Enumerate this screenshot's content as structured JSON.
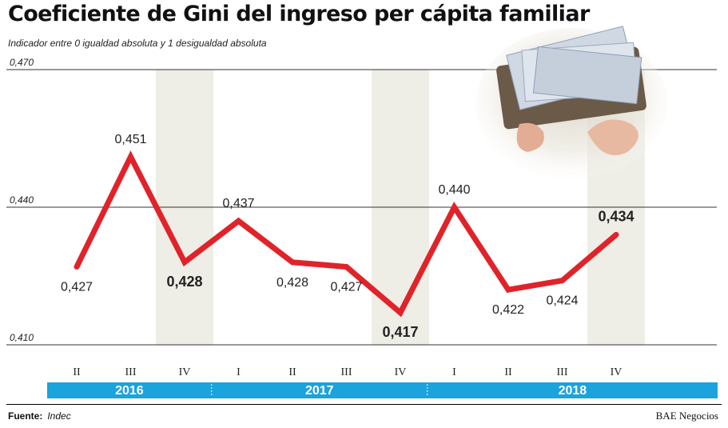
{
  "title": "Coeficiente de Gini del ingreso per cápita familiar",
  "subtitle": "Indicador entre 0 igualdad absoluta y 1 desigualdad absoluta",
  "source": {
    "label": "Fuente:",
    "value": "Indec"
  },
  "brand": "BAE Negocios",
  "photo_icon": "wallet-with-banknotes-photo",
  "colors": {
    "line": "#e0232a",
    "band": "#eeede6",
    "year_bar": "#1ba3dc",
    "grid": "#333333"
  },
  "chart_data": {
    "type": "line",
    "title": "Coeficiente de Gini del ingreso per cápita familiar",
    "subtitle": "Indicador entre 0 igualdad absoluta y 1 desigualdad absoluta",
    "categories": [
      "II",
      "III",
      "IV",
      "I",
      "II",
      "III",
      "IV",
      "I",
      "II",
      "III",
      "IV"
    ],
    "years": [
      {
        "label": "2016",
        "quarters": 3
      },
      {
        "label": "2017",
        "quarters": 4
      },
      {
        "label": "2018",
        "quarters": 4
      }
    ],
    "values": [
      0.427,
      0.451,
      0.428,
      0.437,
      0.428,
      0.427,
      0.417,
      0.44,
      0.422,
      0.424,
      0.434
    ],
    "labels": [
      "0,427",
      "0,451",
      "0,428",
      "0,437",
      "0,428",
      "0,427",
      "0,417",
      "0,440",
      "0,422",
      "0,424",
      "0,434"
    ],
    "emphasized": [
      false,
      false,
      true,
      false,
      false,
      false,
      true,
      false,
      false,
      false,
      true
    ],
    "yticks": [
      0.41,
      0.44,
      0.47
    ],
    "ytick_labels": [
      "0,410",
      "0,440",
      "0,470"
    ],
    "ylim": [
      0.41,
      0.47
    ],
    "shaded_quarters": [
      "IV"
    ],
    "grid": true,
    "legend": "none"
  }
}
